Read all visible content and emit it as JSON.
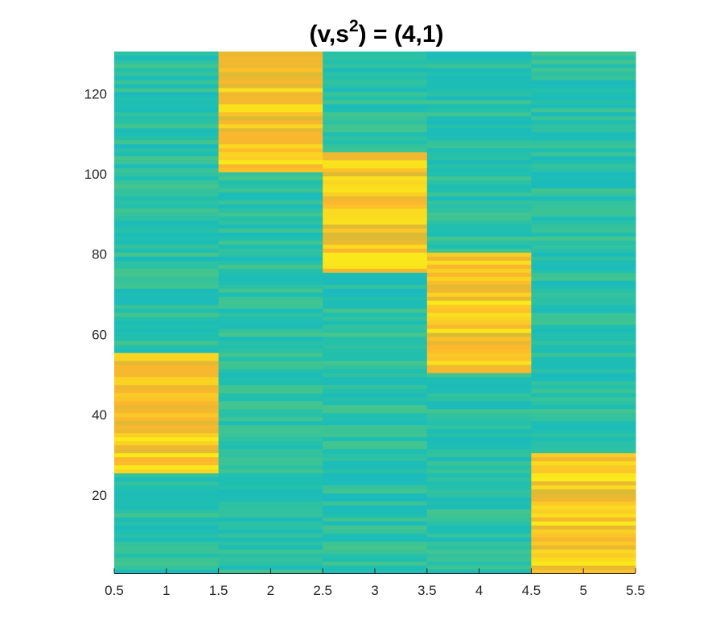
{
  "chart_data": {
    "type": "heatmap",
    "title": "(v,s²) = (4,1)",
    "title_parts": {
      "before": "(v,s",
      "superscript": "2",
      "after": ") = (4,1)"
    },
    "xlabel": "",
    "ylabel": "",
    "xlim": [
      0.5,
      5.5
    ],
    "ylim": [
      0.5,
      130.5
    ],
    "x_ticks": [
      0.5,
      1,
      1.5,
      2,
      2.5,
      3,
      3.5,
      4,
      4.5,
      5,
      5.5
    ],
    "x_tick_labels": [
      "0.5",
      "1",
      "1.5",
      "2",
      "2.5",
      "3",
      "3.5",
      "4",
      "4.5",
      "5",
      "5.5"
    ],
    "y_ticks": [
      20,
      40,
      60,
      80,
      100,
      120
    ],
    "y_tick_labels": [
      "20",
      "40",
      "60",
      "80",
      "100",
      "120"
    ],
    "columns": [
      1,
      2,
      3,
      4,
      5
    ],
    "rows": 130,
    "colormap": "parula",
    "colormap_stops": [
      "#3e26a8",
      "#2e6cf6",
      "#13b1d9",
      "#1fbfb0",
      "#5bc878",
      "#b9bf3c",
      "#fbb72d",
      "#f9fa14"
    ],
    "high_value_blocks": [
      {
        "column": 1,
        "rows": [
          26,
          55
        ]
      },
      {
        "column": 2,
        "rows": [
          101,
          130
        ]
      },
      {
        "column": 3,
        "rows": [
          76,
          105
        ]
      },
      {
        "column": 4,
        "rows": [
          51,
          80
        ]
      },
      {
        "column": 5,
        "rows": [
          1,
          30
        ]
      }
    ],
    "high_value_range": [
      0.78,
      0.97
    ],
    "background_value_range": [
      0.38,
      0.52
    ],
    "grid": false
  }
}
